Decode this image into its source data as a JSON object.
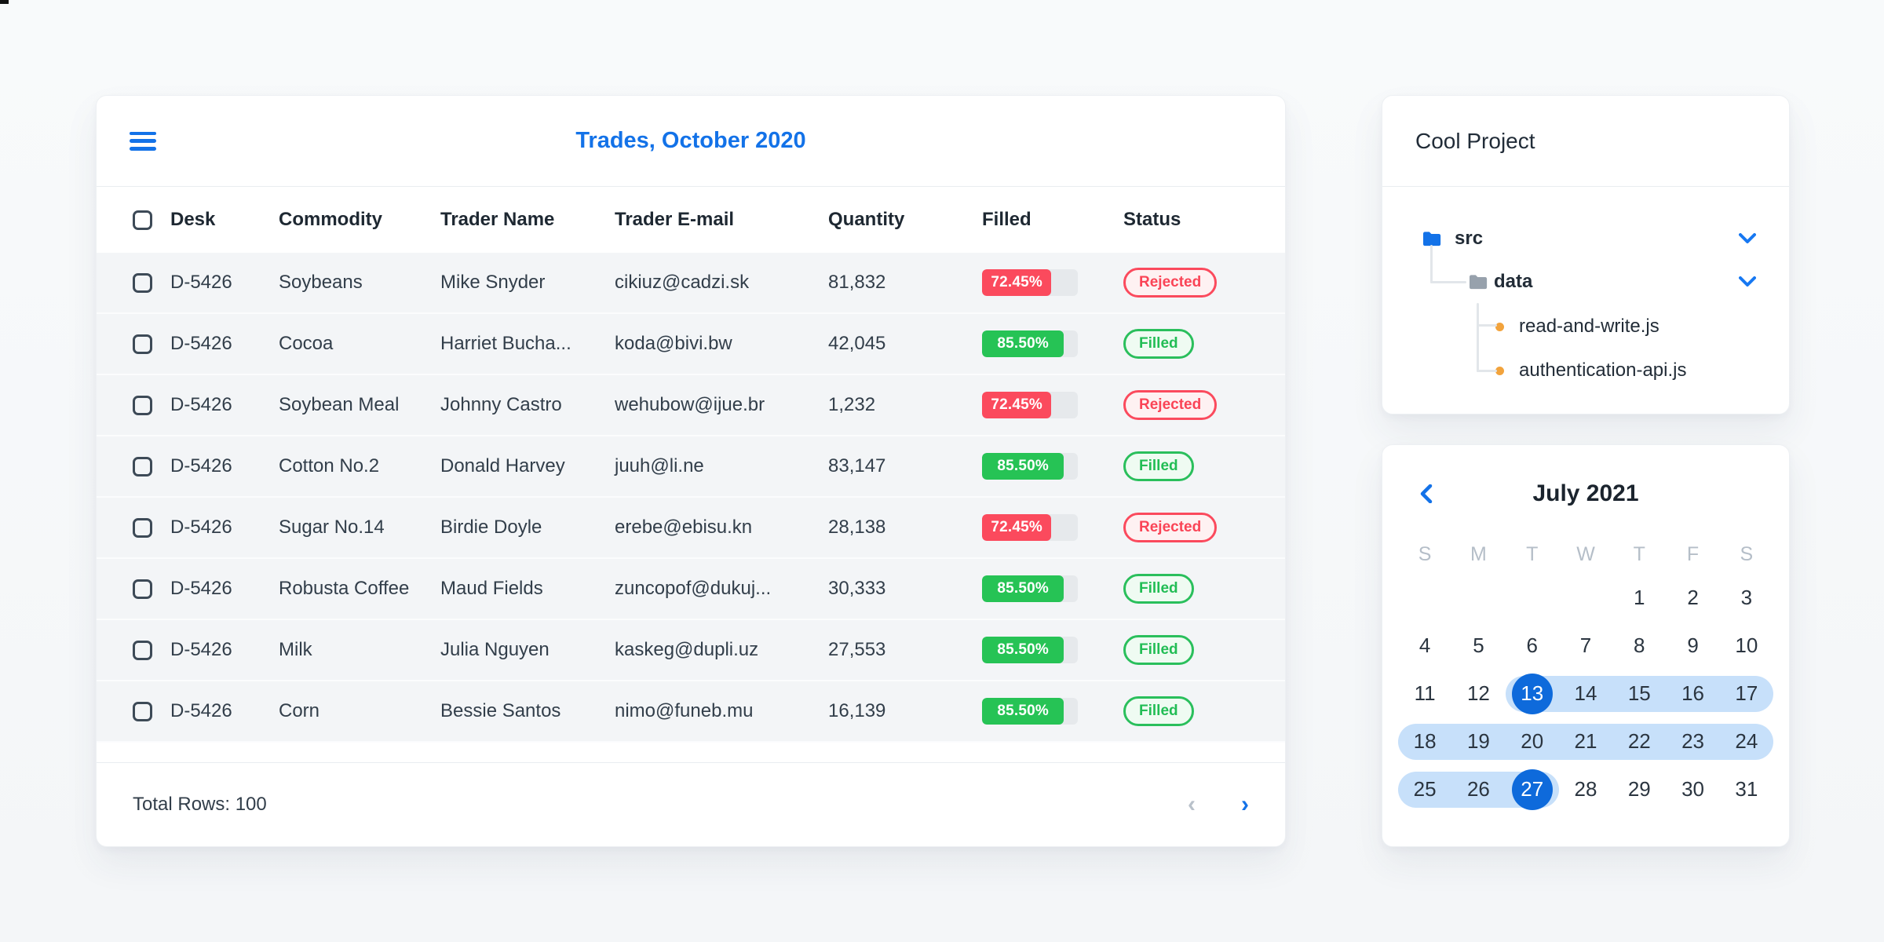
{
  "artifact_text": "",
  "trades_panel": {
    "title": "Trades, October 2020",
    "columns": [
      "Desk",
      "Commodity",
      "Trader Name",
      "Trader E-mail",
      "Quantity",
      "Filled",
      "Status"
    ],
    "rows": [
      {
        "desk": "D-5426",
        "commodity": "Soybeans",
        "trader": "Mike Snyder",
        "email": "cikiuz@cadzi.sk",
        "quantity": "81,832",
        "filled_label": "72.45%",
        "filled_value": 72.45,
        "status": "Rejected"
      },
      {
        "desk": "D-5426",
        "commodity": "Cocoa",
        "trader": "Harriet Bucha...",
        "email": "koda@bivi.bw",
        "quantity": "42,045",
        "filled_label": "85.50%",
        "filled_value": 85.5,
        "status": "Filled"
      },
      {
        "desk": "D-5426",
        "commodity": "Soybean Meal",
        "trader": "Johnny Castro",
        "email": "wehubow@ijue.br",
        "quantity": "1,232",
        "filled_label": "72.45%",
        "filled_value": 72.45,
        "status": "Rejected"
      },
      {
        "desk": "D-5426",
        "commodity": "Cotton No.2",
        "trader": "Donald Harvey",
        "email": "juuh@li.ne",
        "quantity": "83,147",
        "filled_label": "85.50%",
        "filled_value": 85.5,
        "status": "Filled"
      },
      {
        "desk": "D-5426",
        "commodity": "Sugar No.14",
        "trader": "Birdie Doyle",
        "email": "erebe@ebisu.kn",
        "quantity": "28,138",
        "filled_label": "72.45%",
        "filled_value": 72.45,
        "status": "Rejected"
      },
      {
        "desk": "D-5426",
        "commodity": "Robusta Coffee",
        "trader": "Maud Fields",
        "email": "zuncopof@dukuj...",
        "quantity": "30,333",
        "filled_label": "85.50%",
        "filled_value": 85.5,
        "status": "Filled"
      },
      {
        "desk": "D-5426",
        "commodity": "Milk",
        "trader": "Julia Nguyen",
        "email": "kaskeg@dupli.uz",
        "quantity": "27,553",
        "filled_label": "85.50%",
        "filled_value": 85.5,
        "status": "Filled"
      },
      {
        "desk": "D-5426",
        "commodity": "Corn",
        "trader": "Bessie Santos",
        "email": "nimo@funeb.mu",
        "quantity": "16,139",
        "filled_label": "85.50%",
        "filled_value": 85.5,
        "status": "Filled"
      }
    ],
    "footer": {
      "total_label": "Total Rows: 100"
    },
    "colors": {
      "accent_blue": "#1372e8",
      "bar_red": "#fb4a5d",
      "bar_green": "#26c355"
    }
  },
  "project_panel": {
    "title": "Cool Project",
    "tree": [
      {
        "label": "src",
        "type": "folder-blue",
        "level": 0,
        "chevron": true
      },
      {
        "label": "data",
        "type": "folder-gray",
        "level": 1,
        "chevron": true
      },
      {
        "label": "read-and-write.js",
        "type": "file",
        "level": 2,
        "chevron": false
      },
      {
        "label": "authentication-api.js",
        "type": "file",
        "level": 2,
        "chevron": false
      }
    ],
    "colors": {
      "folder_blue": "#1372e8",
      "folder_gray": "#97a1ac",
      "file_dot_orange": "#f2a33c"
    }
  },
  "calendar_panel": {
    "title": "July 2021",
    "day_headers": [
      "S",
      "M",
      "T",
      "W",
      "T",
      "F",
      "S"
    ],
    "weeks": [
      [
        "",
        "",
        "",
        "",
        "1",
        "2",
        "3"
      ],
      [
        "4",
        "5",
        "6",
        "7",
        "8",
        "9",
        "10"
      ],
      [
        "11",
        "12",
        "13",
        "14",
        "15",
        "16",
        "17"
      ],
      [
        "18",
        "19",
        "20",
        "21",
        "22",
        "23",
        "24"
      ],
      [
        "25",
        "26",
        "27",
        "28",
        "29",
        "30",
        "31"
      ]
    ],
    "range_start": 13,
    "range_end": 27,
    "colors": {
      "selected_blue": "#0e6adb",
      "range_light_blue": "#c7e0fa"
    }
  }
}
